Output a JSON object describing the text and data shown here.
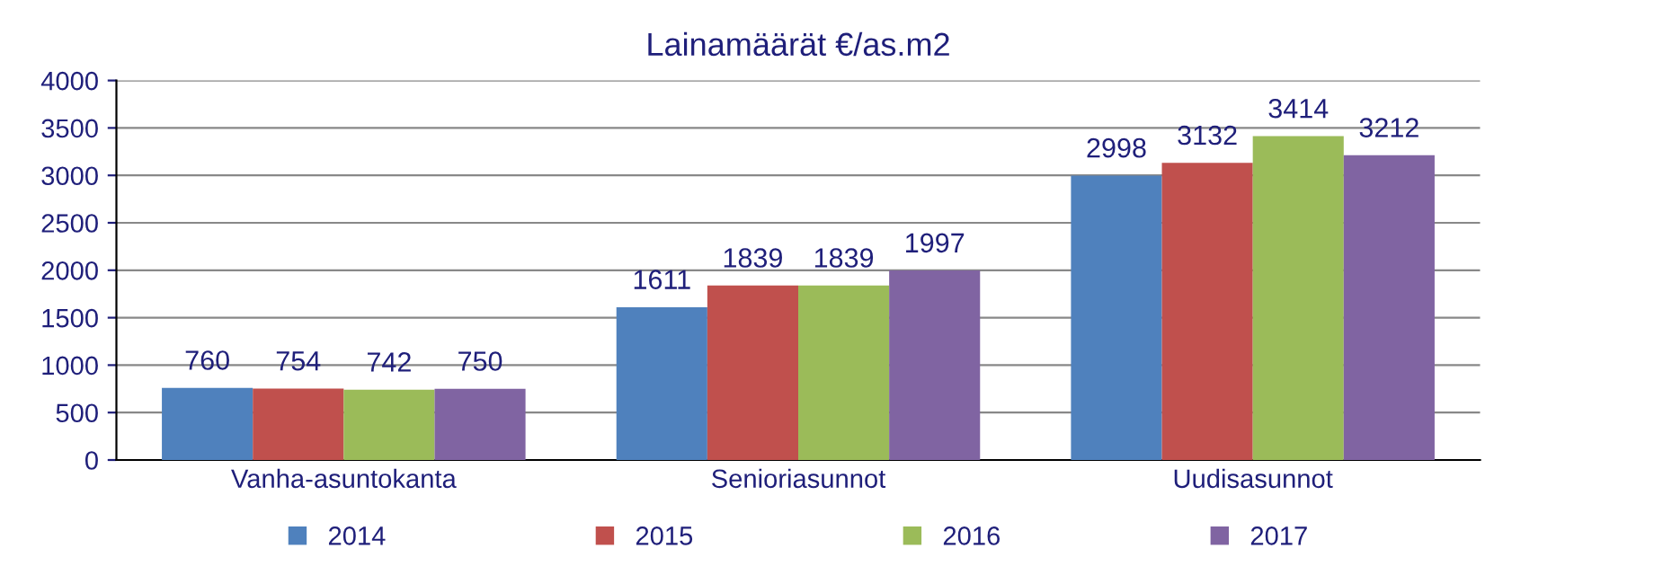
{
  "chart_data": {
    "type": "bar",
    "title": "Lainamäärät €/as.m2",
    "categories": [
      "Vanha-asuntokanta",
      "Senioriasunnot",
      "Uudisasunnot"
    ],
    "series": [
      {
        "name": "2014",
        "color": "#4f81bd",
        "values": [
          760,
          1611,
          2998
        ]
      },
      {
        "name": "2015",
        "color": "#c0504d",
        "values": [
          754,
          1839,
          3132
        ]
      },
      {
        "name": "2016",
        "color": "#9bbb59",
        "values": [
          742,
          1839,
          3414
        ]
      },
      {
        "name": "2017",
        "color": "#8064a2",
        "values": [
          750,
          1997,
          3212
        ]
      }
    ],
    "ylim": [
      0,
      4000
    ],
    "yticks": [
      0,
      500,
      1000,
      1500,
      2000,
      2500,
      3000,
      3500,
      4000
    ],
    "grid": "y",
    "legend": "bottom",
    "data_labels": true
  }
}
